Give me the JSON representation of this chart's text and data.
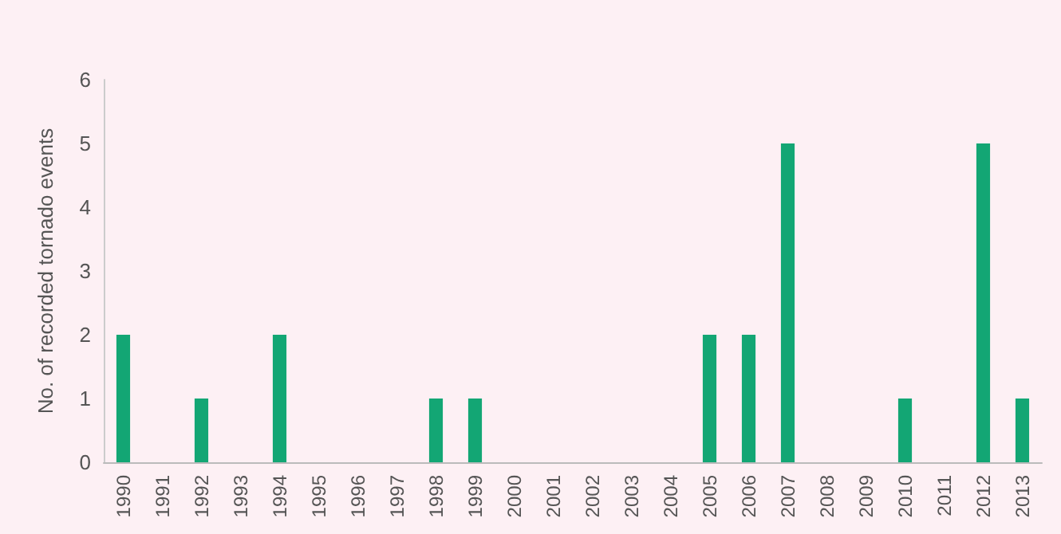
{
  "chart_data": {
    "type": "bar",
    "ylabel": "No. of recorded tornado events",
    "categories": [
      "1990",
      "1991",
      "1992",
      "1993",
      "1994",
      "1995",
      "1996",
      "1997",
      "1998",
      "1999",
      "2000",
      "2001",
      "2002",
      "2003",
      "2004",
      "2005",
      "2006",
      "2007",
      "2008",
      "2009",
      "2010",
      "2011",
      "2012",
      "2013"
    ],
    "values": [
      2,
      0,
      1,
      0,
      2,
      0,
      0,
      0,
      1,
      1,
      0,
      0,
      0,
      0,
      0,
      2,
      2,
      5,
      0,
      0,
      1,
      0,
      5,
      1
    ],
    "color": "#13a674",
    "ylim": [
      0,
      6
    ],
    "yticks": [
      0,
      1,
      2,
      3,
      4,
      5,
      6
    ]
  }
}
